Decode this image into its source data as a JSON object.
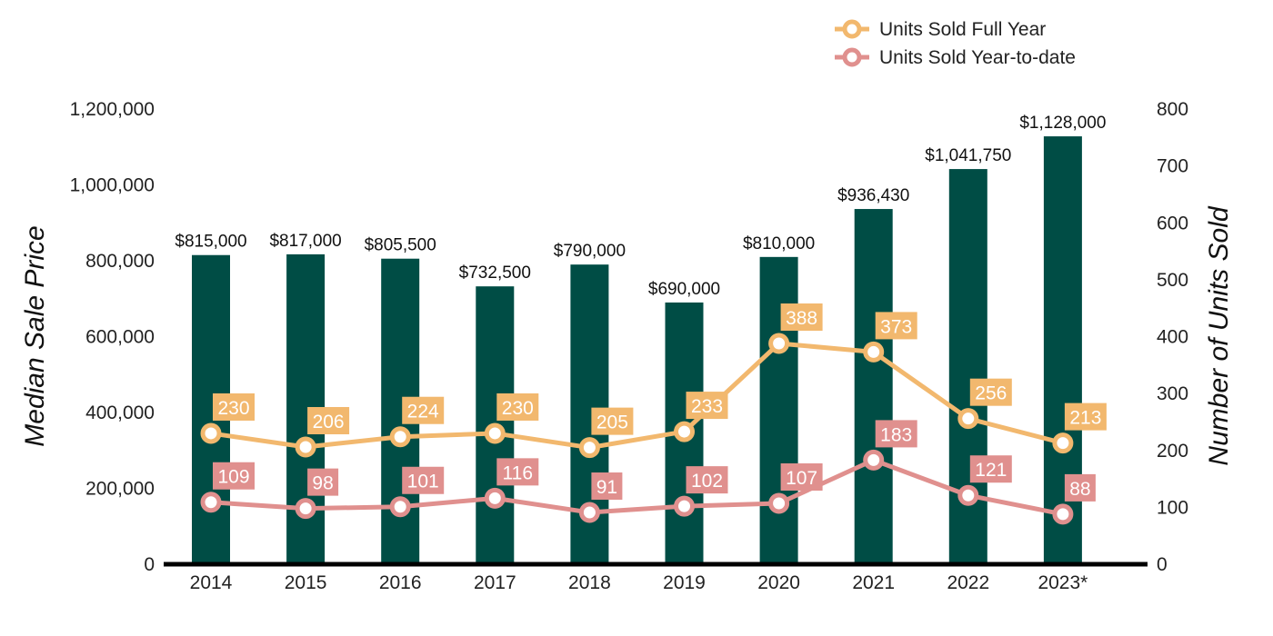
{
  "chart_data": {
    "type": "bar",
    "categories": [
      "2014",
      "2015",
      "2016",
      "2017",
      "2018",
      "2019",
      "2020",
      "2021",
      "2022",
      "2023*"
    ],
    "bar_series": {
      "values": [
        815000,
        817000,
        805500,
        732500,
        790000,
        690000,
        810000,
        936430,
        1041750,
        1128000
      ],
      "labels": [
        "$815,000",
        "$817,000",
        "$805,500",
        "$732,500",
        "$790,000",
        "$690,000",
        "$810,000",
        "$936,430",
        "$1,041,750",
        "$1,128,000"
      ],
      "color": "#004d45"
    },
    "line_series": [
      {
        "name": "Units Sold Full Year",
        "values": [
          230,
          206,
          224,
          230,
          205,
          233,
          388,
          373,
          256,
          213
        ],
        "color": "#f2b86e"
      },
      {
        "name": "Units Sold Year-to-date",
        "values": [
          109,
          98,
          101,
          116,
          91,
          102,
          107,
          183,
          121,
          88
        ],
        "color": "#e0908e"
      }
    ],
    "ylabel_left": "Median Sale Price",
    "ylabel_right": "Number of Units Sold",
    "ylim_left": [
      0,
      1200000
    ],
    "ylim_right": [
      0,
      800
    ],
    "yticks_left": [
      "0",
      "200,000",
      "400,000",
      "600,000",
      "800,000",
      "1,000,000",
      "1,200,000"
    ],
    "yticks_right": [
      "0",
      "100",
      "200",
      "300",
      "400",
      "500",
      "600",
      "700",
      "800"
    ],
    "grid": false,
    "legend_position": "top-right"
  }
}
